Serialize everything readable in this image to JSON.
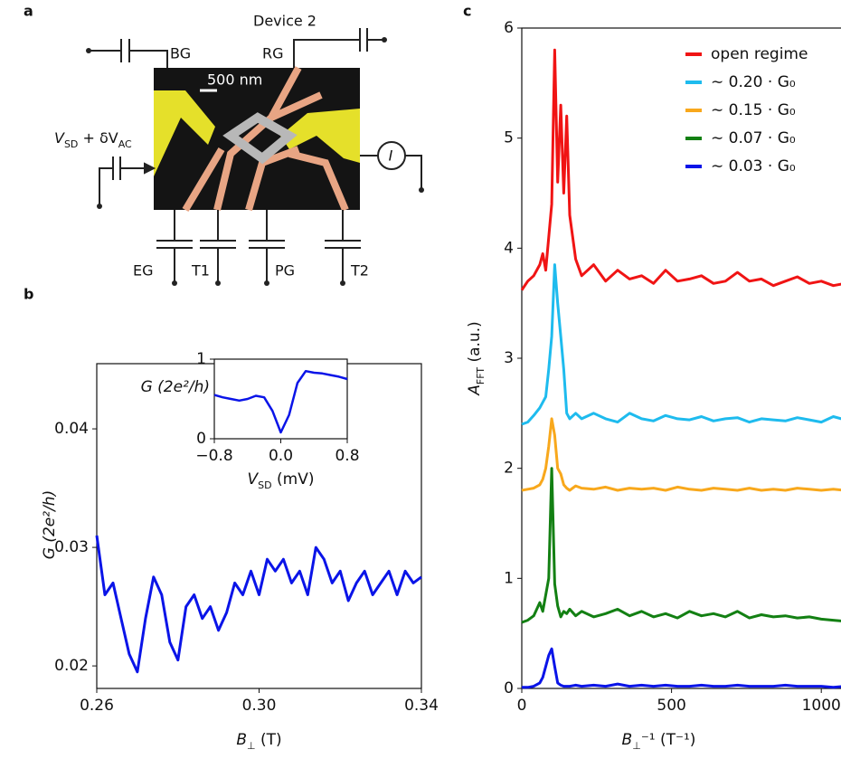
{
  "panels": [
    "a",
    "b",
    "c"
  ],
  "device_diagram": {
    "title": "Device 2",
    "scale_bar": "500 nm",
    "gates": [
      "BG",
      "RG",
      "EG",
      "T1",
      "PG",
      "T2"
    ],
    "source_label": [
      "V",
      "SD",
      " + δV",
      "AC"
    ],
    "current_label": "I"
  },
  "chart_data": [
    {
      "type": "line",
      "xlabel": [
        "B",
        "⊥",
        " (T)"
      ],
      "ylabel": "G (2e²/h)",
      "x": [
        0.26,
        0.262,
        0.264,
        0.266,
        0.268,
        0.27,
        0.272,
        0.274,
        0.276,
        0.278,
        0.28,
        0.282,
        0.284,
        0.286,
        0.288,
        0.29,
        0.292,
        0.294,
        0.296,
        0.298,
        0.3,
        0.302,
        0.304,
        0.306,
        0.308,
        0.31,
        0.312,
        0.314,
        0.316,
        0.318,
        0.32,
        0.322,
        0.324,
        0.326,
        0.328,
        0.33,
        0.332,
        0.334,
        0.336,
        0.338,
        0.34
      ],
      "series": [
        {
          "color": "#0a14e8",
          "values": [
            0.031,
            0.026,
            0.027,
            0.024,
            0.021,
            0.0195,
            0.024,
            0.0275,
            0.026,
            0.022,
            0.0205,
            0.025,
            0.026,
            0.024,
            0.025,
            0.023,
            0.0245,
            0.027,
            0.026,
            0.028,
            0.026,
            0.029,
            0.028,
            0.029,
            0.027,
            0.028,
            0.026,
            0.03,
            0.029,
            0.027,
            0.028,
            0.0255,
            0.027,
            0.028,
            0.026,
            0.027,
            0.028,
            0.026,
            0.028,
            0.027,
            0.0275
          ]
        }
      ],
      "xlim": [
        0.26,
        0.34
      ],
      "ylim": [
        0.0181,
        0.0455
      ],
      "xticks": [
        0.26,
        {
          "value": 0.3,
          "label": "0.30"
        },
        0.34
      ],
      "yticks": [
        0.02,
        0.03,
        0.04
      ]
    },
    {
      "type": "line",
      "xlabel": [
        "V",
        "SD",
        " (mV)"
      ],
      "ylabel": "G (2e²/h)",
      "x": [
        -0.8,
        -0.7,
        -0.6,
        -0.5,
        -0.4,
        -0.3,
        -0.2,
        -0.1,
        0,
        0.1,
        0.2,
        0.3,
        0.4,
        0.5,
        0.6,
        0.7,
        0.8
      ],
      "series": [
        {
          "color": "#0a14e8",
          "values": [
            0.55,
            0.52,
            0.5,
            0.48,
            0.5,
            0.54,
            0.52,
            0.35,
            0.08,
            0.3,
            0.7,
            0.85,
            0.83,
            0.82,
            0.8,
            0.78,
            0.75
          ]
        }
      ],
      "xlim": [
        -0.8,
        0.8
      ],
      "ylim": [
        0,
        1
      ],
      "xticks": [
        {
          "value": -0.8,
          "label": "−0.8"
        },
        {
          "value": 0,
          "label": "0.0"
        },
        0.8
      ],
      "yticks": [
        0,
        1
      ]
    },
    {
      "type": "line",
      "xlabel": [
        "B",
        "⊥",
        "⁻¹ (T⁻¹)"
      ],
      "ylabel": [
        "A",
        "FFT",
        "  (a.u.)"
      ],
      "x": [
        0,
        20,
        40,
        60,
        70,
        80,
        90,
        100,
        110,
        120,
        130,
        140,
        150,
        160,
        180,
        200,
        240,
        280,
        320,
        360,
        400,
        440,
        480,
        520,
        560,
        600,
        640,
        680,
        720,
        760,
        800,
        840,
        880,
        920,
        960,
        1000,
        1040,
        1080
      ],
      "series": [
        {
          "name": "open regime",
          "color": "#f01414",
          "values": [
            3.62,
            3.7,
            3.75,
            3.85,
            3.95,
            3.8,
            4.1,
            4.4,
            5.8,
            4.6,
            5.3,
            4.5,
            5.2,
            4.3,
            3.9,
            3.75,
            3.85,
            3.7,
            3.8,
            3.72,
            3.75,
            3.68,
            3.8,
            3.7,
            3.72,
            3.75,
            3.68,
            3.7,
            3.78,
            3.7,
            3.72,
            3.66,
            3.7,
            3.74,
            3.68,
            3.7,
            3.66,
            3.68
          ]
        },
        {
          "name": "∼ 0.20 · G₀",
          "color": "#1ebbee",
          "values": [
            2.4,
            2.42,
            2.48,
            2.55,
            2.6,
            2.65,
            2.9,
            3.2,
            3.85,
            3.5,
            3.2,
            2.9,
            2.5,
            2.45,
            2.5,
            2.45,
            2.5,
            2.45,
            2.42,
            2.5,
            2.45,
            2.43,
            2.48,
            2.45,
            2.44,
            2.47,
            2.43,
            2.45,
            2.46,
            2.42,
            2.45,
            2.44,
            2.43,
            2.46,
            2.44,
            2.42,
            2.47,
            2.44
          ]
        },
        {
          "name": "∼ 0.15 · G₀",
          "color": "#f8a81c",
          "values": [
            1.8,
            1.81,
            1.82,
            1.85,
            1.9,
            2.0,
            2.2,
            2.45,
            2.3,
            2.0,
            1.95,
            1.85,
            1.82,
            1.8,
            1.84,
            1.82,
            1.81,
            1.83,
            1.8,
            1.82,
            1.81,
            1.82,
            1.8,
            1.83,
            1.81,
            1.8,
            1.82,
            1.81,
            1.8,
            1.82,
            1.8,
            1.81,
            1.8,
            1.82,
            1.81,
            1.8,
            1.81,
            1.8
          ]
        },
        {
          "name": "∼ 0.07 · G₀",
          "color": "#138013",
          "values": [
            0.6,
            0.62,
            0.66,
            0.78,
            0.7,
            0.85,
            1.0,
            2.0,
            0.95,
            0.75,
            0.65,
            0.7,
            0.68,
            0.72,
            0.66,
            0.7,
            0.65,
            0.68,
            0.72,
            0.66,
            0.7,
            0.65,
            0.68,
            0.64,
            0.7,
            0.66,
            0.68,
            0.65,
            0.7,
            0.64,
            0.67,
            0.65,
            0.66,
            0.64,
            0.65,
            0.63,
            0.62,
            0.61
          ]
        },
        {
          "name": "∼ 0.03 · G₀",
          "color": "#0a14e8",
          "values": [
            0.01,
            0.01,
            0.02,
            0.05,
            0.1,
            0.2,
            0.3,
            0.36,
            0.2,
            0.05,
            0.03,
            0.02,
            0.02,
            0.02,
            0.03,
            0.02,
            0.03,
            0.02,
            0.04,
            0.02,
            0.03,
            0.02,
            0.03,
            0.02,
            0.02,
            0.03,
            0.02,
            0.02,
            0.03,
            0.02,
            0.02,
            0.02,
            0.03,
            0.02,
            0.02,
            0.02,
            0.01,
            0.02
          ]
        }
      ],
      "xlim": [
        0,
        1096
      ],
      "ylim": [
        0,
        6
      ],
      "xticks": [
        0,
        500,
        1000
      ],
      "yticks": [
        0,
        1,
        2,
        3,
        4,
        5,
        6
      ],
      "legend": "upper right"
    }
  ]
}
